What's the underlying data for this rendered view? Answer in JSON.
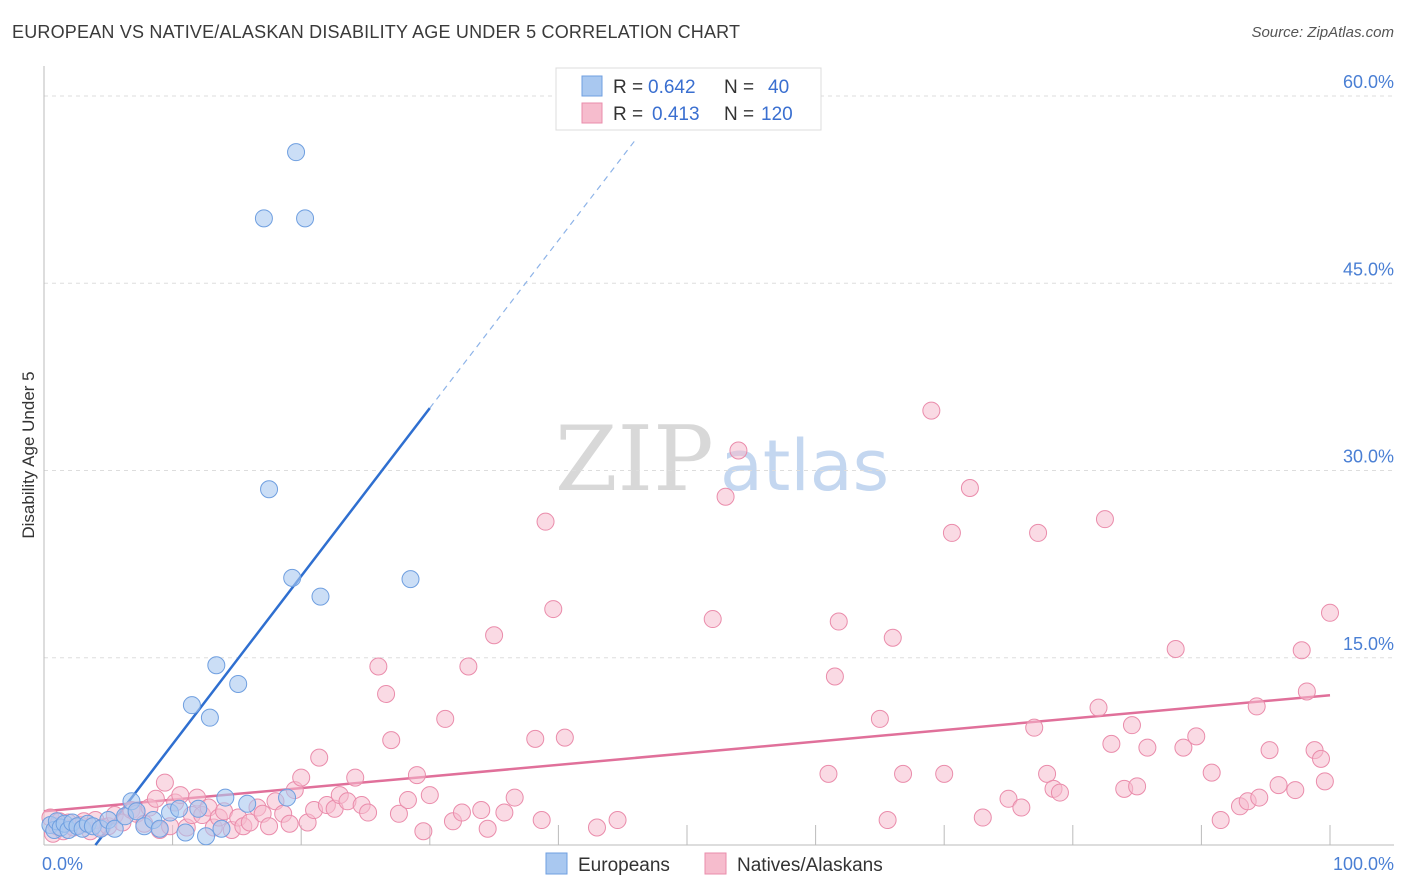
{
  "title": "EUROPEAN VS NATIVE/ALASKAN DISABILITY AGE UNDER 5 CORRELATION CHART",
  "source": "Source: ZipAtlas.com",
  "watermark": {
    "zip": "ZIP",
    "atlas": "atlas"
  },
  "colors": {
    "blue_fill": "#a9c8f0",
    "blue_stroke": "#6f9fe0",
    "blue_line": "#2f6fd0",
    "pink_fill": "#f6bccd",
    "pink_stroke": "#ea8cab",
    "pink_line": "#e0709a",
    "tick": "#4a7fd4",
    "grid": "#dddddd"
  },
  "legend": {
    "rows": [
      {
        "r_label": "R =",
        "r_value": "0.642",
        "n_label": "N =",
        "n_value": "40"
      },
      {
        "r_label": "R =",
        "r_value": "0.413",
        "n_label": "N =",
        "n_value": "120"
      }
    ]
  },
  "bottom_legend": [
    "Europeans",
    "Natives/Alaskans"
  ],
  "chart_data": {
    "type": "scatter",
    "title": "EUROPEAN VS NATIVE/ALASKAN DISABILITY AGE UNDER 5 CORRELATION CHART",
    "xlabel": "",
    "ylabel": "Disability Age Under 5",
    "xlim": [
      0,
      100
    ],
    "ylim": [
      0,
      61
    ],
    "x_tick_labels": [
      "0.0%",
      "100.0%"
    ],
    "y_ticks": [
      15,
      30,
      45,
      60
    ],
    "y_tick_labels": [
      "15.0%",
      "30.0%",
      "45.0%",
      "60.0%"
    ],
    "grid": true,
    "series": [
      {
        "name": "Europeans",
        "r": 0.642,
        "n": 40,
        "trend": {
          "x0": 4.0,
          "y0": 0.0,
          "x1": 30.0,
          "y1": 35.0,
          "dash_to_x": 46.0,
          "dash_to_y": 56.5
        },
        "points": [
          [
            0.5,
            1.6
          ],
          [
            0.8,
            1.2
          ],
          [
            1.0,
            1.9
          ],
          [
            1.3,
            1.4
          ],
          [
            1.6,
            1.7
          ],
          [
            1.9,
            1.2
          ],
          [
            2.2,
            1.8
          ],
          [
            2.6,
            1.5
          ],
          [
            3.0,
            1.3
          ],
          [
            3.4,
            1.7
          ],
          [
            3.8,
            1.5
          ],
          [
            4.4,
            1.3
          ],
          [
            5.0,
            2.0
          ],
          [
            5.5,
            1.3
          ],
          [
            6.3,
            2.3
          ],
          [
            6.8,
            3.5
          ],
          [
            7.2,
            2.7
          ],
          [
            7.8,
            1.5
          ],
          [
            8.5,
            2.0
          ],
          [
            9.0,
            1.3
          ],
          [
            9.8,
            2.6
          ],
          [
            10.5,
            2.9
          ],
          [
            11.0,
            1.0
          ],
          [
            11.5,
            11.2
          ],
          [
            12.0,
            2.9
          ],
          [
            12.6,
            0.7
          ],
          [
            12.9,
            10.2
          ],
          [
            13.4,
            14.4
          ],
          [
            13.8,
            1.3
          ],
          [
            14.1,
            3.8
          ],
          [
            15.1,
            12.9
          ],
          [
            15.8,
            3.3
          ],
          [
            17.1,
            50.2
          ],
          [
            17.5,
            28.5
          ],
          [
            18.9,
            3.8
          ],
          [
            19.3,
            21.4
          ],
          [
            19.6,
            55.5
          ],
          [
            20.3,
            50.2
          ],
          [
            21.5,
            19.9
          ],
          [
            28.5,
            21.3
          ]
        ]
      },
      {
        "name": "Natives/Alaskans",
        "r": 0.413,
        "n": 120,
        "trend": {
          "x0": 0.0,
          "y0": 2.7,
          "x1": 100.0,
          "y1": 12.0
        },
        "points": [
          [
            0.5,
            2.2
          ],
          [
            0.7,
            0.9
          ],
          [
            1.0,
            1.5
          ],
          [
            1.2,
            1.9
          ],
          [
            1.5,
            1.1
          ],
          [
            1.9,
            1.8
          ],
          [
            2.3,
            1.4
          ],
          [
            2.8,
            1.6
          ],
          [
            3.1,
            1.9
          ],
          [
            3.6,
            1.1
          ],
          [
            4.0,
            2.0
          ],
          [
            4.5,
            1.4
          ],
          [
            5.0,
            1.5
          ],
          [
            5.5,
            2.4
          ],
          [
            6.1,
            1.8
          ],
          [
            6.8,
            2.8
          ],
          [
            7.2,
            2.5
          ],
          [
            7.8,
            1.7
          ],
          [
            8.2,
            3.0
          ],
          [
            8.7,
            3.7
          ],
          [
            9.0,
            1.2
          ],
          [
            9.4,
            5.0
          ],
          [
            9.8,
            1.5
          ],
          [
            10.2,
            3.4
          ],
          [
            10.6,
            4.0
          ],
          [
            11.1,
            1.4
          ],
          [
            11.5,
            2.4
          ],
          [
            11.9,
            3.8
          ],
          [
            12.3,
            2.4
          ],
          [
            12.8,
            3.0
          ],
          [
            13.2,
            1.4
          ],
          [
            13.6,
            2.2
          ],
          [
            14.0,
            2.7
          ],
          [
            14.6,
            1.2
          ],
          [
            15.1,
            2.2
          ],
          [
            15.5,
            1.5
          ],
          [
            16.0,
            1.8
          ],
          [
            16.6,
            3.0
          ],
          [
            17.0,
            2.5
          ],
          [
            17.5,
            1.5
          ],
          [
            18.0,
            3.5
          ],
          [
            18.6,
            2.5
          ],
          [
            19.1,
            1.7
          ],
          [
            19.5,
            4.4
          ],
          [
            20.0,
            5.4
          ],
          [
            20.5,
            1.8
          ],
          [
            21.0,
            2.8
          ],
          [
            21.4,
            7.0
          ],
          [
            22.0,
            3.2
          ],
          [
            22.6,
            2.9
          ],
          [
            23.0,
            4.0
          ],
          [
            23.6,
            3.5
          ],
          [
            24.2,
            5.4
          ],
          [
            24.7,
            3.2
          ],
          [
            25.2,
            2.6
          ],
          [
            26.0,
            14.3
          ],
          [
            26.6,
            12.1
          ],
          [
            27.0,
            8.4
          ],
          [
            27.6,
            2.5
          ],
          [
            28.3,
            3.6
          ],
          [
            29.0,
            5.6
          ],
          [
            29.5,
            1.1
          ],
          [
            30.0,
            4.0
          ],
          [
            31.2,
            10.1
          ],
          [
            31.8,
            1.9
          ],
          [
            32.5,
            2.6
          ],
          [
            33.0,
            14.3
          ],
          [
            34.0,
            2.8
          ],
          [
            34.5,
            1.3
          ],
          [
            35.0,
            16.8
          ],
          [
            35.8,
            2.6
          ],
          [
            36.6,
            3.8
          ],
          [
            38.2,
            8.5
          ],
          [
            38.7,
            2.0
          ],
          [
            39.0,
            25.9
          ],
          [
            39.6,
            18.9
          ],
          [
            40.5,
            8.6
          ],
          [
            43.0,
            1.4
          ],
          [
            44.6,
            2.0
          ],
          [
            52.0,
            18.1
          ],
          [
            53.0,
            27.9
          ],
          [
            54.0,
            31.6
          ],
          [
            61.0,
            5.7
          ],
          [
            61.5,
            13.5
          ],
          [
            61.8,
            17.9
          ],
          [
            65.0,
            10.1
          ],
          [
            65.6,
            2.0
          ],
          [
            66.0,
            16.6
          ],
          [
            66.8,
            5.7
          ],
          [
            69.0,
            34.8
          ],
          [
            70.0,
            5.7
          ],
          [
            70.6,
            25.0
          ],
          [
            72.0,
            28.6
          ],
          [
            73.0,
            2.2
          ],
          [
            75.0,
            3.7
          ],
          [
            76.0,
            3.0
          ],
          [
            77.0,
            9.4
          ],
          [
            77.3,
            25.0
          ],
          [
            78.0,
            5.7
          ],
          [
            78.5,
            4.5
          ],
          [
            79.0,
            4.2
          ],
          [
            82.0,
            11.0
          ],
          [
            82.5,
            26.1
          ],
          [
            83.0,
            8.1
          ],
          [
            84.0,
            4.5
          ],
          [
            84.6,
            9.6
          ],
          [
            85.0,
            4.7
          ],
          [
            85.8,
            7.8
          ],
          [
            88.0,
            15.7
          ],
          [
            88.6,
            7.8
          ],
          [
            89.6,
            8.7
          ],
          [
            90.8,
            5.8
          ],
          [
            91.5,
            2.0
          ],
          [
            93.0,
            3.1
          ],
          [
            93.6,
            3.5
          ],
          [
            94.3,
            11.1
          ],
          [
            94.5,
            3.8
          ],
          [
            95.3,
            7.6
          ],
          [
            96.0,
            4.8
          ],
          [
            97.3,
            4.4
          ],
          [
            97.8,
            15.6
          ],
          [
            98.2,
            12.3
          ],
          [
            98.8,
            7.6
          ],
          [
            99.3,
            6.9
          ],
          [
            99.6,
            5.1
          ],
          [
            100.0,
            18.6
          ]
        ]
      }
    ]
  }
}
